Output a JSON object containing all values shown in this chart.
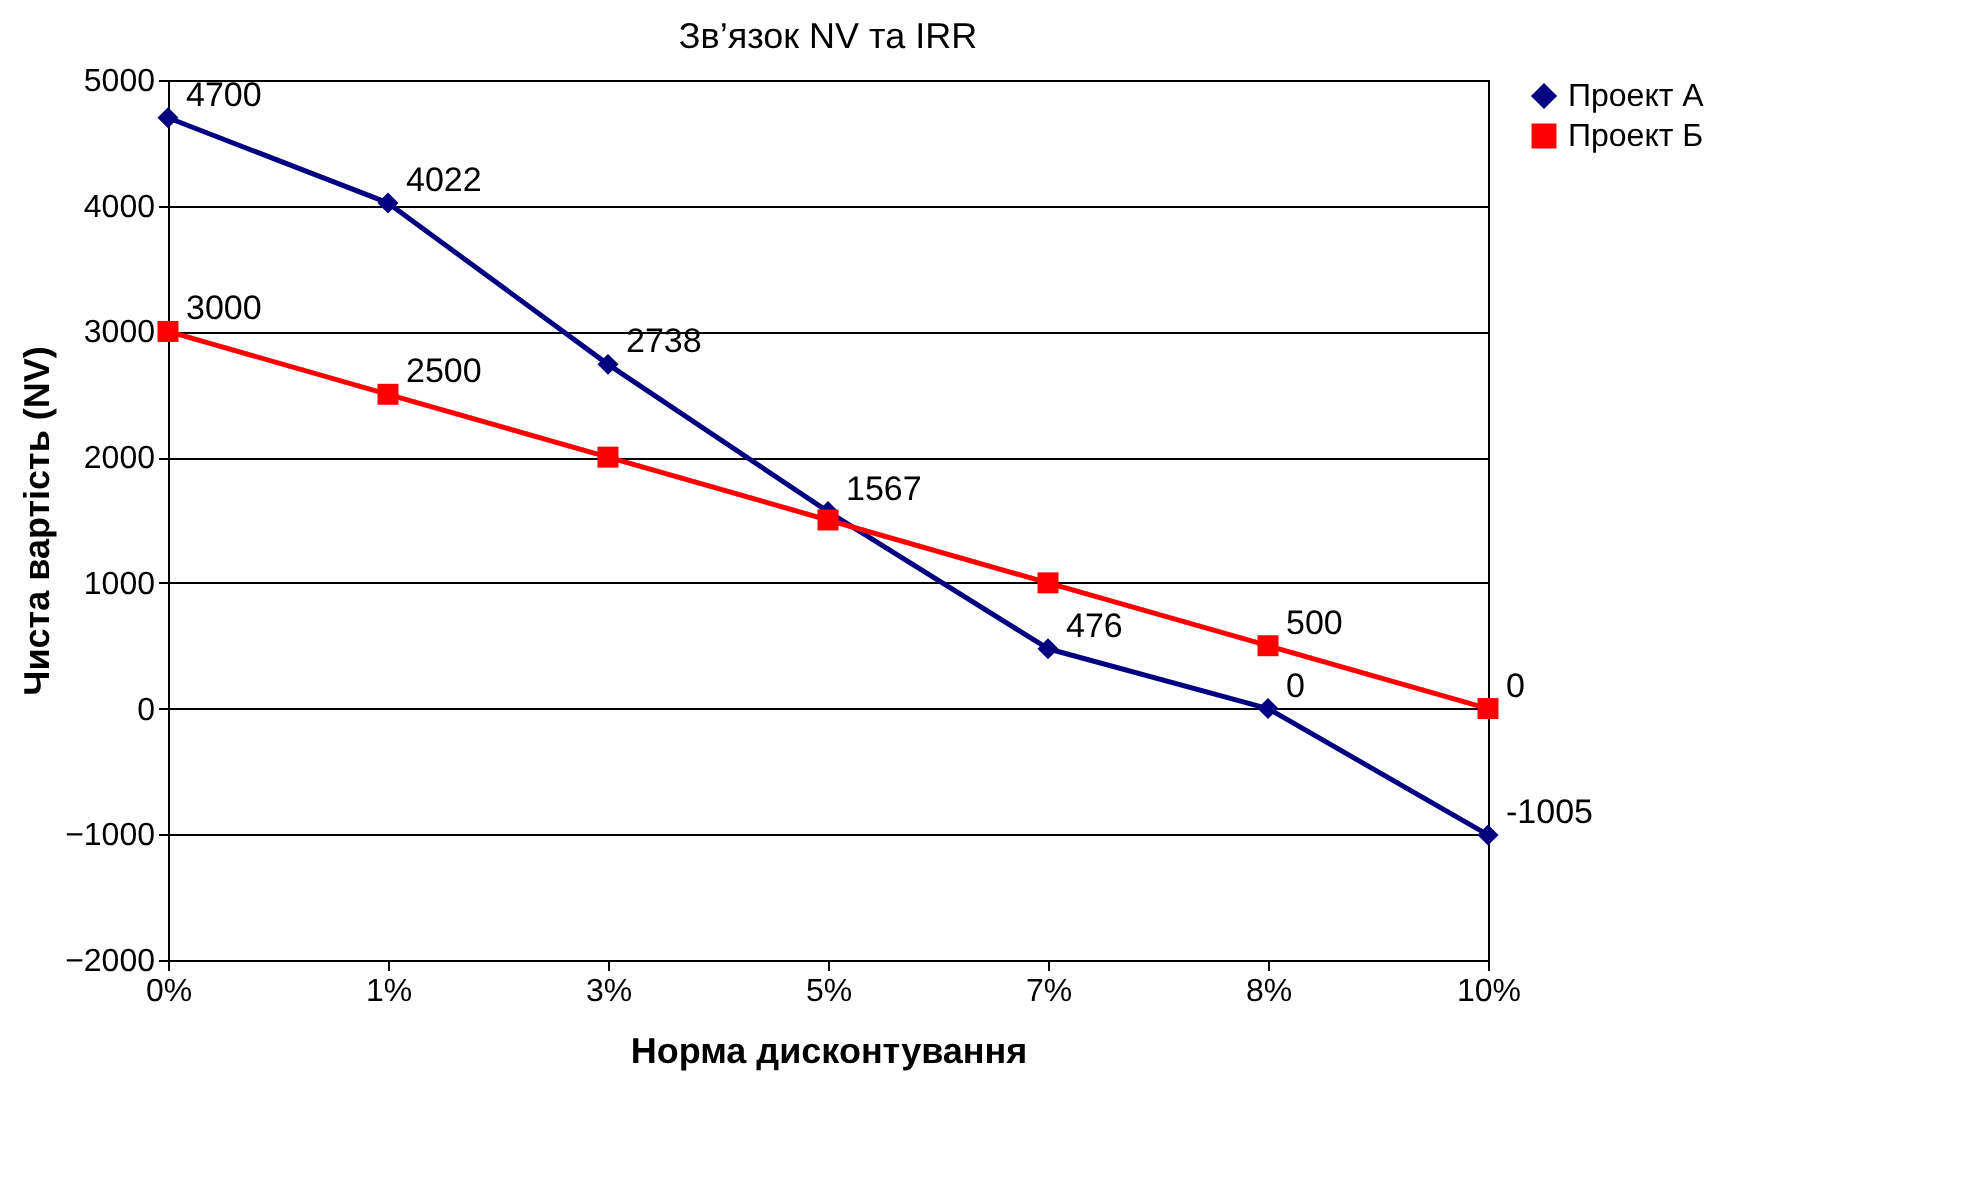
{
  "chart_data": {
    "type": "line",
    "title": "Зв’язок NV та IRR",
    "xlabel": "Норма дисконтування",
    "ylabel": "Чиста вартість (NV)",
    "categories": [
      "0%",
      "1%",
      "3%",
      "5%",
      "7%",
      "8%",
      "10%"
    ],
    "series": [
      {
        "name": "Проект А",
        "color": "#000080",
        "marker": "diamond",
        "values": [
          4700,
          4022,
          2738,
          1567,
          476,
          0,
          -1005
        ],
        "value_labels": [
          "4700",
          "4022",
          "2738",
          "1567",
          "476",
          "0",
          "-1005"
        ]
      },
      {
        "name": "Проект Б",
        "color": "#ff0000",
        "marker": "square",
        "values": [
          3000,
          2500,
          2000,
          1500,
          1000,
          500,
          0
        ],
        "value_labels": [
          "3000",
          "2500",
          null,
          null,
          null,
          "500",
          "0"
        ]
      }
    ],
    "ylim": [
      -2000,
      5000
    ],
    "yticks": [
      -2000,
      -1000,
      0,
      1000,
      2000,
      3000,
      4000,
      5000
    ],
    "grid": "y",
    "legend": "right"
  }
}
